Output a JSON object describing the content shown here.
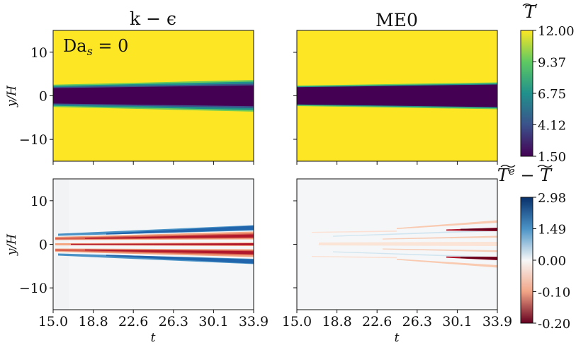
{
  "chart_data": [
    {
      "type": "heatmap",
      "panel": "top-left",
      "title": "k − ϵ",
      "annotation": "Da",
      "annotation_sub": "s",
      "annotation_rest": " = 0",
      "xlabel": "",
      "ylabel": "y/H",
      "xlim": [
        15.0,
        33.9
      ],
      "ylim": [
        -15,
        15
      ],
      "yticks": [
        "10",
        "0",
        "−10"
      ],
      "ytick_values": [
        10,
        0,
        -10
      ],
      "field": "T",
      "profile": {
        "core_value": 1.5,
        "ambient_value": 12.0,
        "half_width_start": 2.4,
        "half_width_end": 3.5
      },
      "colormap": "viridis"
    },
    {
      "type": "heatmap",
      "panel": "top-right",
      "title": "ME0",
      "xlabel": "",
      "ylabel": "",
      "xlim": [
        15.0,
        33.9
      ],
      "ylim": [
        -15,
        15
      ],
      "field": "T",
      "profile": {
        "core_value": 1.5,
        "ambient_value": 12.0,
        "half_width_start": 2.0,
        "half_width_end": 2.8
      },
      "colormap": "viridis"
    },
    {
      "type": "heatmap",
      "panel": "bottom-left",
      "title": "",
      "xlabel": "t",
      "ylabel": "y/H",
      "xlim": [
        15.0,
        33.9
      ],
      "ylim": [
        -15,
        15
      ],
      "xticks": [
        "15.0",
        "18.8",
        "22.6",
        "26.3",
        "30.1",
        "33.9"
      ],
      "yticks": [
        "10",
        "0",
        "−10"
      ],
      "ytick_values": [
        10,
        0,
        -10
      ],
      "field": "T^e − T",
      "colormap": "RdBu"
    },
    {
      "type": "heatmap",
      "panel": "bottom-right",
      "title": "",
      "xlabel": "t",
      "ylabel": "",
      "xlim": [
        15.0,
        33.9
      ],
      "ylim": [
        -15,
        15
      ],
      "xticks": [
        "15.0",
        "18.8",
        "22.6",
        "26.3",
        "30.1",
        "33.9"
      ],
      "field": "T^e − T",
      "colormap": "RdBu"
    }
  ],
  "colorbars": [
    {
      "title": "T",
      "title_note": "tilde",
      "ticks": [
        "12.00",
        "9.37",
        "6.75",
        "4.12",
        "1.50"
      ],
      "tick_values": [
        12.0,
        9.37,
        6.75,
        4.12,
        1.5
      ],
      "range": [
        1.5,
        12.0
      ],
      "stops": [
        "#fde725",
        "#5ec962",
        "#21918c",
        "#3b528b",
        "#440154"
      ]
    },
    {
      "title": "T",
      "title_superscript": "e",
      "title_rest": " − T",
      "ticks": [
        "2.98",
        "1.49",
        "0.00",
        "-0.10",
        "-0.20"
      ],
      "tick_values": [
        2.98,
        1.49,
        0.0,
        -0.1,
        -0.2
      ],
      "stops": [
        "#08306b",
        "#4b93c6",
        "#f7f7f7",
        "#f1a486",
        "#67001f"
      ]
    }
  ]
}
